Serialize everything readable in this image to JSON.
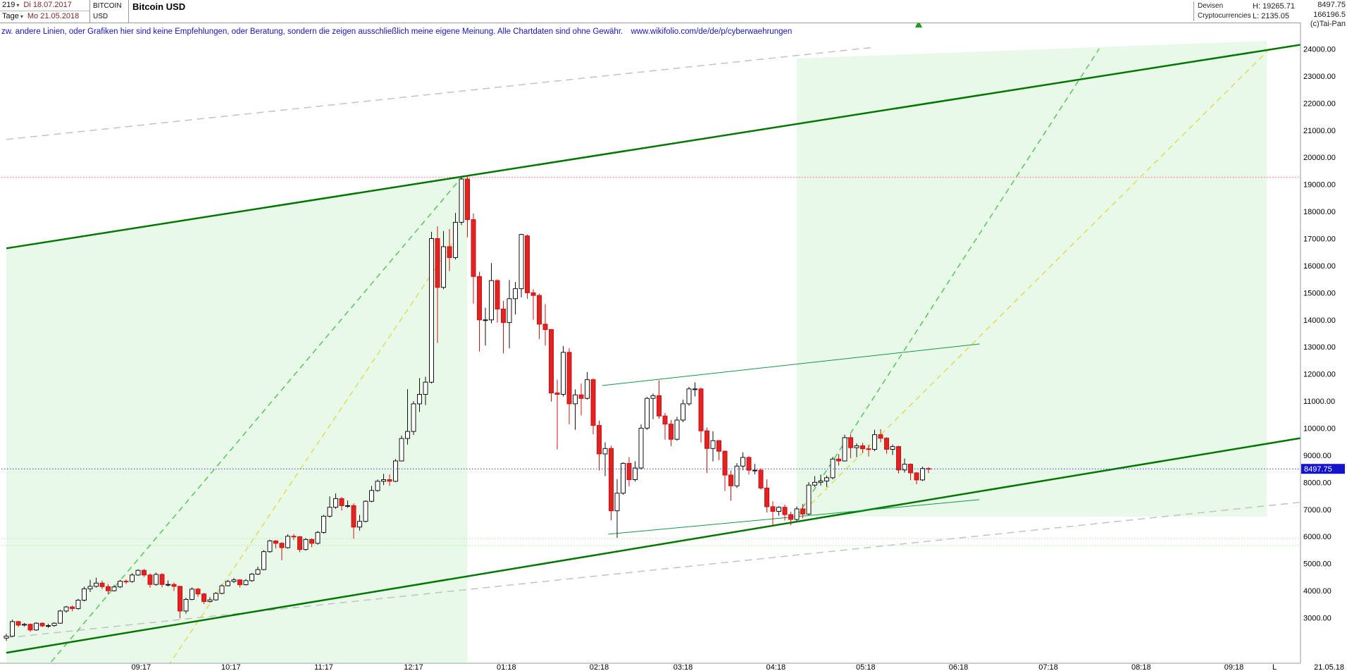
{
  "header": {
    "bars_count": "219",
    "period_label": "Tage",
    "date_first": "Di 18.07.2017",
    "date_last": "Mo 21.05.2018",
    "symbol_code_line1": "BITCOIN",
    "symbol_code_line2": "USD",
    "symbol_name": "Bitcoin USD",
    "category_line1": "Devisen",
    "category_line2": "Cryptocurrencies",
    "high_label": "H: 19265.71",
    "low_label": "L: 2135.05",
    "last_price": "8497.75",
    "volume": "166196.5",
    "copyright": "(c)Tai-Pan"
  },
  "disclaimer": {
    "text": "zw. andere Linien, oder Grafiken hier sind keine Empfehlungen, oder Beratung, sondern die zeigen ausschließlich meine eigene Meinung. Alle Chartdaten sind ohne Gewähr.",
    "url": "www.wikifolio.com/de/de/p/cyberwaehrungen"
  },
  "axis": {
    "last_bar_marker": "L",
    "last_date": "21.05.18"
  },
  "chart_data": {
    "type": "candlestick",
    "title": "Bitcoin USD",
    "x_start_date": "2017-07-18",
    "x_end_date": "2018-05-21",
    "candle_interval_days": 2,
    "x_range_days": [
      0,
      436
    ],
    "y_range": [
      1350,
      24300
    ],
    "high": 19265.71,
    "low": 2135.05,
    "last_price": 8497.75,
    "last_price_label": "8497.75",
    "colors": {
      "up_fill": "#ffffff",
      "up_stroke": "#111111",
      "down_fill": "#e32222",
      "down_stroke": "#cc1111",
      "price_tag_bg": "#1414cc"
    },
    "y_ticks": [
      {
        "value": 24000,
        "label": "24000.00"
      },
      {
        "value": 23000,
        "label": "23000.00"
      },
      {
        "value": 22000,
        "label": "22000.00"
      },
      {
        "value": 21000,
        "label": "21000.00"
      },
      {
        "value": 20000,
        "label": "20000.00"
      },
      {
        "value": 19000,
        "label": "19000.00"
      },
      {
        "value": 18000,
        "label": "18000.00"
      },
      {
        "value": 17000,
        "label": "17000.00"
      },
      {
        "value": 16000,
        "label": "16000.00"
      },
      {
        "value": 15000,
        "label": "15000.00"
      },
      {
        "value": 14000,
        "label": "14000.00"
      },
      {
        "value": 13000,
        "label": "13000.00"
      },
      {
        "value": 12000,
        "label": "12000.00"
      },
      {
        "value": 11000,
        "label": "11000.00"
      },
      {
        "value": 10000,
        "label": "10000.00"
      },
      {
        "value": 9000,
        "label": "9000.00"
      },
      {
        "value": 8000,
        "label": "8000.00"
      },
      {
        "value": 7000,
        "label": "7000.00"
      },
      {
        "value": 6000,
        "label": "6000.00"
      },
      {
        "value": 5000,
        "label": "5000.00"
      },
      {
        "value": 4000,
        "label": "4000.00"
      },
      {
        "value": 3000,
        "label": "3000.00"
      }
    ],
    "x_ticks": [
      {
        "day": 45,
        "label": "09:17"
      },
      {
        "day": 75,
        "label": "10:17"
      },
      {
        "day": 106,
        "label": "11:17"
      },
      {
        "day": 136,
        "label": "12:17"
      },
      {
        "day": 167,
        "label": "01:18"
      },
      {
        "day": 198,
        "label": "02:18"
      },
      {
        "day": 226,
        "label": "03:18"
      },
      {
        "day": 257,
        "label": "04:18"
      },
      {
        "day": 287,
        "label": "05:18"
      },
      {
        "day": 318,
        "label": "06:18"
      },
      {
        "day": 348,
        "label": "07:18"
      },
      {
        "day": 379,
        "label": "08:18"
      },
      {
        "day": 410,
        "label": "09:18"
      }
    ],
    "hlines": [
      {
        "name": "all-time-high-line",
        "value": 19265.71,
        "color": "#ff6666",
        "dash": "1.5,2.5",
        "layer": "below"
      },
      {
        "name": "support-dotted-line-a",
        "value": 5920,
        "color": "#9fe89f",
        "dash": "1.5,2.5",
        "layer": "below"
      },
      {
        "name": "support-dotted-line-b",
        "value": 5670,
        "color": "#9fe89f",
        "dash": "1.5,2.5",
        "layer": "below"
      },
      {
        "name": "last-price-line",
        "value": 8497.75,
        "color": "#3a3ad0",
        "dash": "1.5,2.5",
        "layer": "above"
      }
    ],
    "trend_lines": [
      {
        "name": "gray-dashed-channel-top",
        "color": "#c2c2c2",
        "width": 1.5,
        "dash": "10,7",
        "points": [
          [
            0,
            20658
          ],
          [
            290,
            24065
          ]
        ]
      },
      {
        "name": "gray-dashed-channel-bottom",
        "color": "#c2c2c2",
        "width": 1.5,
        "dash": "10,7",
        "points": [
          [
            0,
            2260
          ],
          [
            436,
            7310
          ]
        ]
      },
      {
        "name": "green-dashed-uptrend-2017",
        "color": "#55c855",
        "width": 1.5,
        "dash": "8,6",
        "points": [
          [
            15,
            1375
          ],
          [
            153,
            19380
          ]
        ]
      },
      {
        "name": "green-dashed-uptrend-2018",
        "color": "#55c855",
        "width": 1.5,
        "dash": "8,6",
        "points": [
          [
            264,
            6740
          ],
          [
            365,
            24010
          ]
        ]
      },
      {
        "name": "yellow-dashed-uptrend-2017",
        "color": "#dede50",
        "width": 1.5,
        "dash": "8,6",
        "points": [
          [
            54,
            1220
          ],
          [
            151,
            17170
          ]
        ]
      },
      {
        "name": "yellow-dashed-uptrend-2018",
        "color": "#dede50",
        "width": 1.5,
        "dash": "8,6",
        "points": [
          [
            264,
            6685
          ],
          [
            422,
            24010
          ]
        ]
      },
      {
        "name": "main-channel-top",
        "color": "#007700",
        "width": 2.5,
        "dash": null,
        "points": [
          [
            0,
            16640
          ],
          [
            436,
            24220
          ]
        ]
      },
      {
        "name": "main-channel-bottom",
        "color": "#007700",
        "width": 2.5,
        "dash": null,
        "points": [
          [
            0,
            1710
          ],
          [
            436,
            9700
          ]
        ]
      },
      {
        "name": "thin-resistance-line",
        "color": "#119944",
        "width": 1,
        "dash": null,
        "points": [
          [
            199,
            11575
          ],
          [
            325,
            13110
          ]
        ]
      },
      {
        "name": "thin-support-line",
        "color": "#119944",
        "width": 1,
        "dash": null,
        "points": [
          [
            201,
            6085
          ],
          [
            325,
            7360
          ]
        ]
      }
    ],
    "regions": [
      {
        "name": "channel-fill-left",
        "color": "rgba(120,220,120,0.16)",
        "points": [
          [
            0,
            16640
          ],
          [
            154,
            19300
          ],
          [
            154,
            1350
          ],
          [
            0,
            1350
          ]
        ]
      },
      {
        "name": "channel-fill-right",
        "color": "rgba(120,220,120,0.16)",
        "points": [
          [
            264,
            23650
          ],
          [
            421,
            24300
          ],
          [
            421,
            6740
          ],
          [
            264,
            6740
          ]
        ]
      }
    ],
    "ohlc": [
      [
        2250,
        2410,
        2150,
        2320
      ],
      [
        2320,
        2930,
        2300,
        2860
      ],
      [
        2860,
        2890,
        2660,
        2730
      ],
      [
        2730,
        2810,
        2680,
        2760
      ],
      [
        2760,
        2780,
        2480,
        2550
      ],
      [
        2550,
        2830,
        2520,
        2800
      ],
      [
        2800,
        2830,
        2650,
        2700
      ],
      [
        2700,
        2770,
        2630,
        2710
      ],
      [
        2710,
        2830,
        2670,
        2800
      ],
      [
        2800,
        3290,
        2780,
        3250
      ],
      [
        3250,
        3440,
        3190,
        3400
      ],
      [
        3400,
        3450,
        3240,
        3340
      ],
      [
        3340,
        3700,
        3300,
        3650
      ],
      [
        3650,
        4150,
        3600,
        4070
      ],
      [
        4070,
        4400,
        3950,
        4160
      ],
      [
        4160,
        4480,
        4110,
        4280
      ],
      [
        4280,
        4370,
        4060,
        4150
      ],
      [
        4150,
        4240,
        3860,
        4000
      ],
      [
        4000,
        4210,
        3970,
        4140
      ],
      [
        4140,
        4400,
        4100,
        4350
      ],
      [
        4350,
        4420,
        4250,
        4340
      ],
      [
        4340,
        4650,
        4290,
        4580
      ],
      [
        4580,
        4790,
        4550,
        4750
      ],
      [
        4750,
        4800,
        4510,
        4580
      ],
      [
        4580,
        4640,
        4110,
        4230
      ],
      [
        4230,
        4670,
        4180,
        4600
      ],
      [
        4600,
        4650,
        4120,
        4230
      ],
      [
        4230,
        4380,
        4150,
        4230
      ],
      [
        4230,
        4300,
        3990,
        4160
      ],
      [
        4160,
        4180,
        2980,
        3250
      ],
      [
        3250,
        3740,
        3150,
        3680
      ],
      [
        3680,
        4120,
        3650,
        4060
      ],
      [
        4060,
        4100,
        3770,
        3880
      ],
      [
        3880,
        3920,
        3510,
        3600
      ],
      [
        3600,
        3760,
        3560,
        3660
      ],
      [
        3660,
        3950,
        3630,
        3900
      ],
      [
        3900,
        4240,
        3870,
        4180
      ],
      [
        4180,
        4400,
        4160,
        4340
      ],
      [
        4340,
        4470,
        4280,
        4400
      ],
      [
        4400,
        4420,
        4120,
        4220
      ],
      [
        4220,
        4430,
        4190,
        4370
      ],
      [
        4370,
        4650,
        4330,
        4610
      ],
      [
        4610,
        4890,
        4580,
        4780
      ],
      [
        4780,
        5500,
        4750,
        5440
      ],
      [
        5440,
        5880,
        5400,
        5840
      ],
      [
        5840,
        5860,
        5560,
        5750
      ],
      [
        5750,
        5790,
        5120,
        5590
      ],
      [
        5590,
        6080,
        5550,
        6010
      ],
      [
        6010,
        6090,
        5870,
        5990
      ],
      [
        5990,
        6020,
        5420,
        5520
      ],
      [
        5520,
        5940,
        5480,
        5890
      ],
      [
        5890,
        5930,
        5610,
        5750
      ],
      [
        5750,
        6210,
        5700,
        6150
      ],
      [
        6150,
        6800,
        6110,
        6750
      ],
      [
        6750,
        7480,
        6700,
        7080
      ],
      [
        7080,
        7590,
        7020,
        7400
      ],
      [
        7400,
        7460,
        6960,
        7140
      ],
      [
        7140,
        7330,
        7060,
        7140
      ],
      [
        7140,
        7220,
        5920,
        6350
      ],
      [
        6350,
        6800,
        6220,
        6560
      ],
      [
        6560,
        7340,
        6520,
        7300
      ],
      [
        7300,
        7870,
        7260,
        7700
      ],
      [
        7700,
        8110,
        7650,
        8040
      ],
      [
        8040,
        8310,
        7900,
        8100
      ],
      [
        8100,
        8290,
        7870,
        8040
      ],
      [
        8040,
        8860,
        8010,
        8790
      ],
      [
        8790,
        9730,
        8770,
        9620
      ],
      [
        9620,
        11440,
        9390,
        9880
      ],
      [
        9880,
        11000,
        9750,
        10900
      ],
      [
        10900,
        11850,
        10600,
        11250
      ],
      [
        11250,
        11900,
        10850,
        11700
      ],
      [
        11700,
        17250,
        11650,
        17000
      ],
      [
        17000,
        17450,
        13150,
        15200
      ],
      [
        15200,
        17280,
        15130,
        16700
      ],
      [
        16700,
        17350,
        15800,
        16300
      ],
      [
        16300,
        17950,
        16230,
        17600
      ],
      [
        17600,
        19266,
        17500,
        19200
      ],
      [
        19200,
        19280,
        17050,
        17700
      ],
      [
        17700,
        17930,
        14600,
        15600
      ],
      [
        15600,
        15770,
        12830,
        14000
      ],
      [
        14000,
        14450,
        13050,
        14000
      ],
      [
        14000,
        16100,
        13870,
        15450
      ],
      [
        15450,
        15500,
        13900,
        14400
      ],
      [
        14400,
        14700,
        12760,
        13900
      ],
      [
        13900,
        15470,
        12950,
        14780
      ],
      [
        14780,
        15400,
        14200,
        15150
      ],
      [
        15150,
        17180,
        14830,
        17150
      ],
      [
        17100,
        17150,
        14780,
        15000
      ],
      [
        15000,
        15130,
        14000,
        14900
      ],
      [
        14900,
        14970,
        13290,
        13840
      ],
      [
        13840,
        14580,
        13050,
        13640
      ],
      [
        13640,
        13660,
        10980,
        11300
      ],
      [
        11300,
        11790,
        9220,
        11250
      ],
      [
        11250,
        13030,
        11170,
        12800
      ],
      [
        12800,
        12950,
        10150,
        10900
      ],
      [
        10900,
        11430,
        9940,
        11230
      ],
      [
        11230,
        11650,
        10470,
        11100
      ],
      [
        11100,
        12070,
        11050,
        11790
      ],
      [
        11790,
        11840,
        9770,
        10100
      ],
      [
        10100,
        10280,
        8440,
        9050
      ],
      [
        9050,
        9480,
        8230,
        9250
      ],
      [
        9250,
        9350,
        6600,
        6950
      ],
      [
        6950,
        8120,
        5950,
        7600
      ],
      [
        7600,
        8740,
        7540,
        8700
      ],
      [
        8700,
        8930,
        7850,
        8100
      ],
      [
        8100,
        8780,
        8030,
        8530
      ],
      [
        8530,
        10140,
        8470,
        10000
      ],
      [
        10000,
        11150,
        9940,
        11100
      ],
      [
        11100,
        11280,
        10330,
        11200
      ],
      [
        11200,
        11770,
        10350,
        10450
      ],
      [
        10450,
        10560,
        9580,
        10150
      ],
      [
        10150,
        10300,
        9340,
        9590
      ],
      [
        9590,
        10420,
        9540,
        10300
      ],
      [
        10300,
        11050,
        10220,
        10900
      ],
      [
        10900,
        11530,
        10830,
        11450
      ],
      [
        11450,
        11690,
        11170,
        11450
      ],
      [
        11450,
        11500,
        9470,
        9900
      ],
      [
        9900,
        10020,
        8350,
        9250
      ],
      [
        9250,
        9890,
        8770,
        9540
      ],
      [
        9540,
        9560,
        8820,
        9150
      ],
      [
        9150,
        9180,
        7680,
        8270
      ],
      [
        8270,
        8430,
        7330,
        7870
      ],
      [
        7870,
        8710,
        7790,
        8600
      ],
      [
        8600,
        9110,
        8450,
        8920
      ],
      [
        8920,
        8970,
        8290,
        8450
      ],
      [
        8450,
        8680,
        8300,
        8450
      ],
      [
        8450,
        8510,
        7730,
        7790
      ],
      [
        7790,
        8110,
        6890,
        7100
      ],
      [
        7100,
        7300,
        6430,
        6930
      ],
      [
        6930,
        7120,
        6770,
        7080
      ],
      [
        7080,
        7180,
        6590,
        6810
      ],
      [
        6810,
        6910,
        6420,
        6630
      ],
      [
        6630,
        7110,
        6570,
        7020
      ],
      [
        7020,
        7200,
        6670,
        6830
      ],
      [
        6830,
        8010,
        6790,
        7900
      ],
      [
        7900,
        8230,
        7830,
        8000
      ],
      [
        8000,
        8290,
        7880,
        8050
      ],
      [
        8050,
        8250,
        7830,
        8170
      ],
      [
        8170,
        8940,
        8110,
        8860
      ],
      [
        8860,
        9040,
        8620,
        8790
      ],
      [
        8790,
        9760,
        8770,
        9650
      ],
      [
        9650,
        9770,
        8890,
        9280
      ],
      [
        9280,
        9440,
        8930,
        9350
      ],
      [
        9350,
        9460,
        9090,
        9240
      ],
      [
        9240,
        9390,
        8950,
        9220
      ],
      [
        9220,
        9940,
        9150,
        9760
      ],
      [
        9760,
        9960,
        9480,
        9630
      ],
      [
        9630,
        9670,
        9060,
        9220
      ],
      [
        9220,
        9400,
        9010,
        9320
      ],
      [
        9320,
        9350,
        8330,
        8460
      ],
      [
        8460,
        8880,
        8360,
        8670
      ],
      [
        8670,
        8700,
        8080,
        8350
      ],
      [
        8350,
        8380,
        7930,
        8090
      ],
      [
        8090,
        8580,
        8050,
        8510
      ],
      [
        8510,
        8560,
        8340,
        8497.75
      ]
    ]
  }
}
